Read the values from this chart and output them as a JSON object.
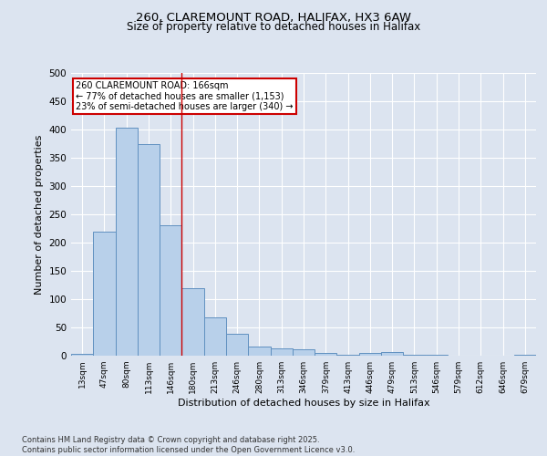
{
  "title_line1": "260, CLAREMOUNT ROAD, HALIFAX, HX3 6AW",
  "title_line2": "Size of property relative to detached houses in Halifax",
  "xlabel": "Distribution of detached houses by size in Halifax",
  "ylabel": "Number of detached properties",
  "categories": [
    "13sqm",
    "47sqm",
    "80sqm",
    "113sqm",
    "146sqm",
    "180sqm",
    "213sqm",
    "246sqm",
    "280sqm",
    "313sqm",
    "346sqm",
    "379sqm",
    "413sqm",
    "446sqm",
    "479sqm",
    "513sqm",
    "546sqm",
    "579sqm",
    "612sqm",
    "646sqm",
    "679sqm"
  ],
  "values": [
    3,
    220,
    403,
    375,
    230,
    119,
    68,
    39,
    16,
    13,
    12,
    5,
    2,
    5,
    6,
    1,
    1,
    0,
    0,
    0,
    1
  ],
  "bar_color": "#b8d0ea",
  "bar_edge_color": "#6090c0",
  "vline_x": 4.5,
  "vline_color": "#cc0000",
  "annotation_text": "260 CLAREMOUNT ROAD: 166sqm\n← 77% of detached houses are smaller (1,153)\n23% of semi-detached houses are larger (340) →",
  "annotation_box_color": "#ffffff",
  "annotation_box_edge_color": "#cc0000",
  "ylim": [
    0,
    500
  ],
  "yticks": [
    0,
    50,
    100,
    150,
    200,
    250,
    300,
    350,
    400,
    450,
    500
  ],
  "background_color": "#dce4f0",
  "grid_color": "#ffffff",
  "footer": "Contains HM Land Registry data © Crown copyright and database right 2025.\nContains public sector information licensed under the Open Government Licence v3.0."
}
